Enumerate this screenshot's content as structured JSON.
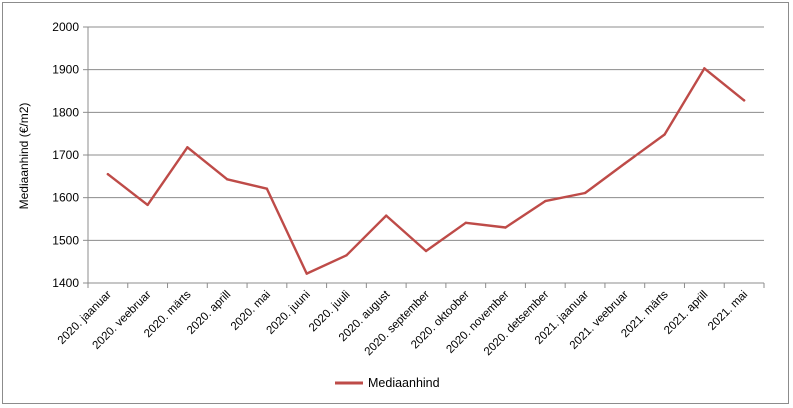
{
  "chart_data": {
    "type": "line",
    "title": "",
    "xlabel": "",
    "ylabel": "Mediaanhind (€/m2)",
    "ylim": [
      1400,
      2000
    ],
    "yticks": [
      1400,
      1500,
      1600,
      1700,
      1800,
      1900,
      2000
    ],
    "grid": true,
    "legend_position": "bottom",
    "categories": [
      "2020. jaanuar",
      "2020. veebruar",
      "2020. märts",
      "2020. aprill",
      "2020. mai",
      "2020. juuni",
      "2020. juuli",
      "2020. august",
      "2020. september",
      "2020. oktoober",
      "2020. november",
      "2020. detsember",
      "2021. jaanuar",
      "2021. veebruar",
      "2021. märts",
      "2021. aprill",
      "2021. mai"
    ],
    "series": [
      {
        "name": "Mediaanhind",
        "color": "#be4b48",
        "values": [
          1655,
          1583,
          1718,
          1643,
          1621,
          1422,
          1465,
          1558,
          1475,
          1541,
          1530,
          1592,
          1611,
          1680,
          1748,
          1903,
          1828
        ]
      }
    ]
  }
}
